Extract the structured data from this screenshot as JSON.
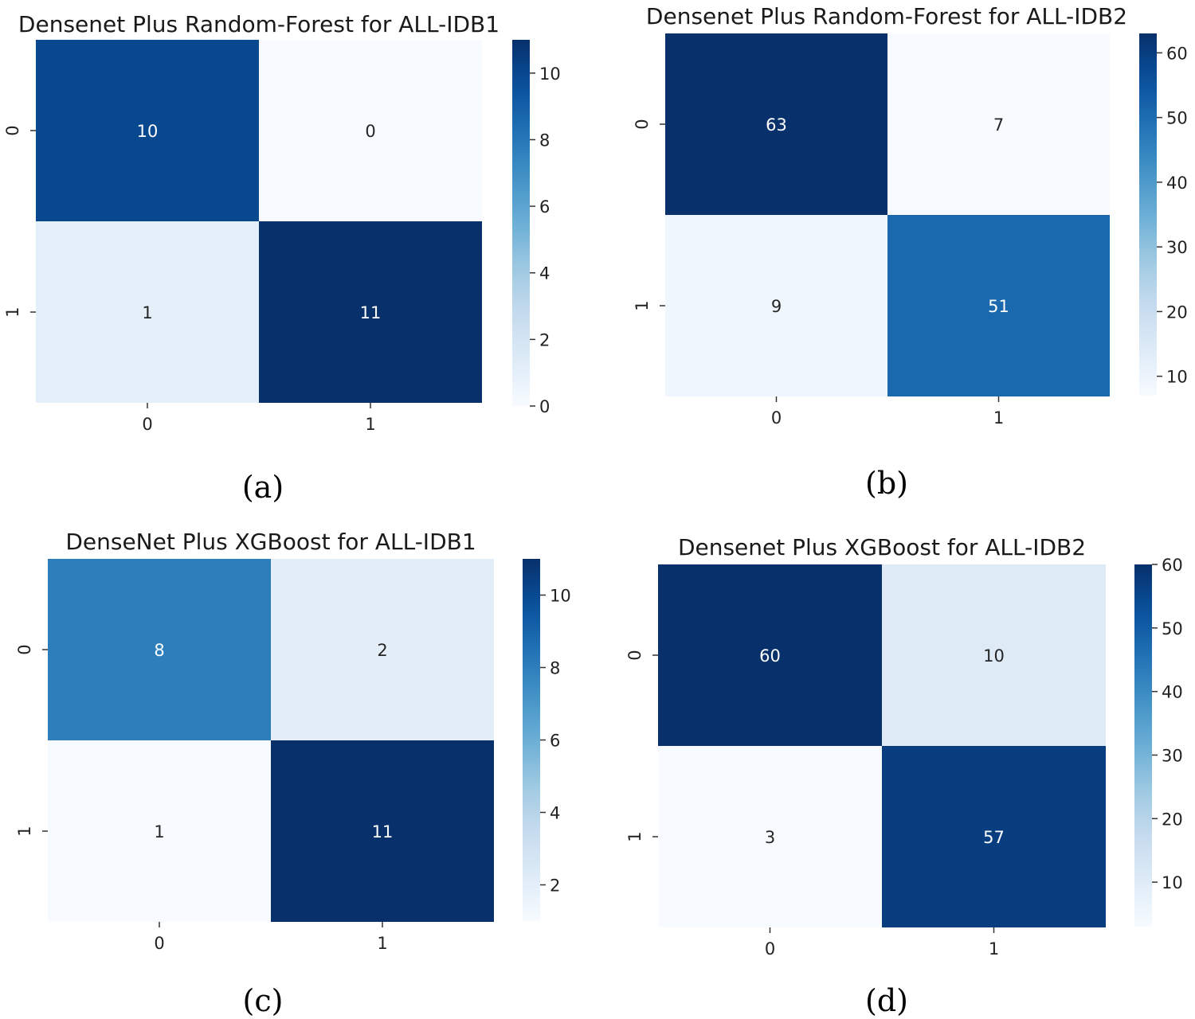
{
  "chart_data": [
    {
      "type": "heatmap",
      "title": "Densenet Plus Random-Forest for ALL-IDB1",
      "caption": "(a)",
      "x_ticks": [
        "0",
        "1"
      ],
      "y_ticks": [
        "0",
        "1"
      ],
      "matrix": [
        [
          10,
          0
        ],
        [
          1,
          11
        ]
      ],
      "colorbar": {
        "min": 0,
        "max": 11,
        "ticks": [
          0,
          2,
          4,
          6,
          8,
          10
        ]
      },
      "colormap": "Blues"
    },
    {
      "type": "heatmap",
      "title": "Densenet Plus Random-Forest for ALL-IDB2",
      "caption": "(b)",
      "x_ticks": [
        "0",
        "1"
      ],
      "y_ticks": [
        "0",
        "1"
      ],
      "matrix": [
        [
          63,
          7
        ],
        [
          9,
          51
        ]
      ],
      "colorbar": {
        "min": 7,
        "max": 63,
        "ticks": [
          10,
          20,
          30,
          40,
          50,
          60
        ]
      },
      "colormap": "Blues"
    },
    {
      "type": "heatmap",
      "title": "DenseNet Plus XGBoost for ALL-IDB1",
      "caption": "(c)",
      "x_ticks": [
        "0",
        "1"
      ],
      "y_ticks": [
        "0",
        "1"
      ],
      "matrix": [
        [
          8,
          2
        ],
        [
          1,
          11
        ]
      ],
      "colorbar": {
        "min": 1,
        "max": 11,
        "ticks": [
          2,
          4,
          6,
          8,
          10
        ]
      },
      "colormap": "Blues"
    },
    {
      "type": "heatmap",
      "title": "Densenet Plus XGBoost for ALL-IDB2",
      "caption": "(d)",
      "x_ticks": [
        "0",
        "1"
      ],
      "y_ticks": [
        "0",
        "1"
      ],
      "matrix": [
        [
          60,
          10
        ],
        [
          3,
          57
        ]
      ],
      "colorbar": {
        "min": 3,
        "max": 60,
        "ticks": [
          10,
          20,
          30,
          40,
          50,
          60
        ]
      },
      "colormap": "Blues"
    }
  ]
}
